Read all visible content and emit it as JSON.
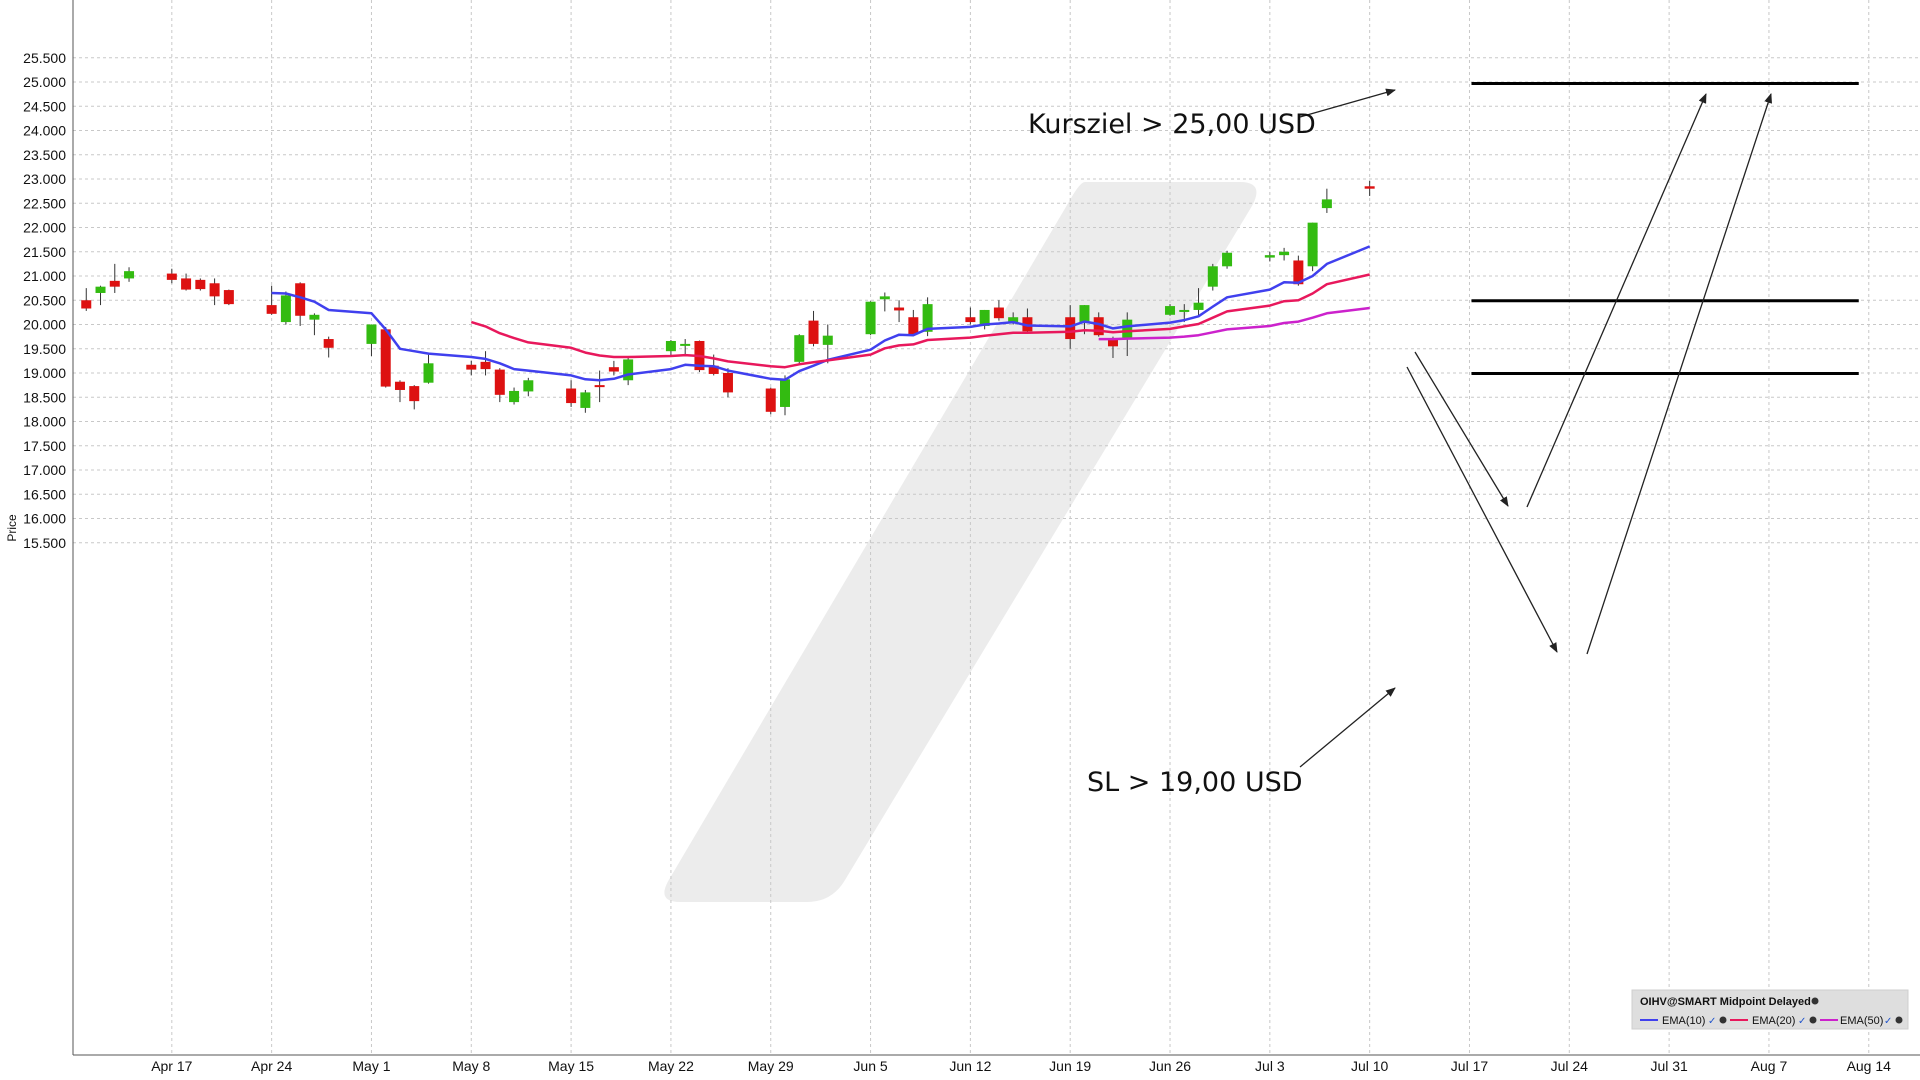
{
  "chart_data": {
    "type": "candlestick",
    "ylabel": "Price",
    "ylim": [
      15000,
      25800
    ],
    "yticks": [
      15500,
      16000,
      16500,
      17000,
      17500,
      18000,
      18500,
      19000,
      19500,
      20000,
      20500,
      21000,
      21500,
      22000,
      22500,
      23000,
      23500,
      24000,
      24500,
      25000,
      25500
    ],
    "ytick_labels": [
      "15.500",
      "16.000",
      "16.500",
      "17.000",
      "17.500",
      "18.000",
      "18.500",
      "19.000",
      "19.500",
      "20.000",
      "20.500",
      "21.000",
      "21.500",
      "22.000",
      "22.500",
      "23.000",
      "23.500",
      "24.000",
      "24.500",
      "25.000",
      "25.500"
    ],
    "xticks": [
      "Apr 17",
      "Apr 24",
      "May 1",
      "May 8",
      "May 15",
      "May 22",
      "May 29",
      "Jun 5",
      "Jun 12",
      "Jun 19",
      "Jun 26",
      "Jul 3",
      "Jul 10",
      "Jul 17",
      "Jul 24",
      "Jul 31",
      "Aug 7",
      "Aug 14"
    ],
    "x_start": "2017-04-10",
    "grid": true,
    "candles": [
      {
        "date": "2017-04-11",
        "open": 20500,
        "high": 20750,
        "low": 20280,
        "close": 20330
      },
      {
        "date": "2017-04-12",
        "open": 20650,
        "high": 20800,
        "low": 20400,
        "close": 20780
      },
      {
        "date": "2017-04-13",
        "open": 20900,
        "high": 21250,
        "low": 20650,
        "close": 20780
      },
      {
        "date": "2017-04-14",
        "open": 20950,
        "high": 21180,
        "low": 20880,
        "close": 21100
      },
      {
        "date": "2017-04-17",
        "open": 21050,
        "high": 21150,
        "low": 20850,
        "close": 20920
      },
      {
        "date": "2017-04-18",
        "open": 20950,
        "high": 21050,
        "low": 20700,
        "close": 20720
      },
      {
        "date": "2017-04-19",
        "open": 20920,
        "high": 20950,
        "low": 20700,
        "close": 20730
      },
      {
        "date": "2017-04-20",
        "open": 20850,
        "high": 20950,
        "low": 20400,
        "close": 20580
      },
      {
        "date": "2017-04-21",
        "open": 20710,
        "high": 20720,
        "low": 20400,
        "close": 20420
      },
      {
        "date": "2017-04-24",
        "open": 20400,
        "high": 20800,
        "low": 20200,
        "close": 20220
      },
      {
        "date": "2017-04-25",
        "open": 20050,
        "high": 20680,
        "low": 20000,
        "close": 20600
      },
      {
        "date": "2017-04-26",
        "open": 20850,
        "high": 20870,
        "low": 19970,
        "close": 20180
      },
      {
        "date": "2017-04-27",
        "open": 20100,
        "high": 20230,
        "low": 19780,
        "close": 20200
      },
      {
        "date": "2017-04-28",
        "open": 19700,
        "high": 19750,
        "low": 19320,
        "close": 19520
      },
      {
        "date": "2017-05-01",
        "open": 19600,
        "high": 20000,
        "low": 19350,
        "close": 20000
      },
      {
        "date": "2017-05-02",
        "open": 19900,
        "high": 19950,
        "low": 18700,
        "close": 18720
      },
      {
        "date": "2017-05-03",
        "open": 18820,
        "high": 18850,
        "low": 18400,
        "close": 18650
      },
      {
        "date": "2017-05-04",
        "open": 18730,
        "high": 18750,
        "low": 18250,
        "close": 18420
      },
      {
        "date": "2017-05-05",
        "open": 18800,
        "high": 19380,
        "low": 18780,
        "close": 19200
      },
      {
        "date": "2017-05-08",
        "open": 19170,
        "high": 19250,
        "low": 18950,
        "close": 19070
      },
      {
        "date": "2017-05-09",
        "open": 19230,
        "high": 19450,
        "low": 18950,
        "close": 19080
      },
      {
        "date": "2017-05-10",
        "open": 19070,
        "high": 19100,
        "low": 18400,
        "close": 18550
      },
      {
        "date": "2017-05-11",
        "open": 18400,
        "high": 18700,
        "low": 18350,
        "close": 18630
      },
      {
        "date": "2017-05-12",
        "open": 18620,
        "high": 18900,
        "low": 18520,
        "close": 18850
      },
      {
        "date": "2017-05-15",
        "open": 18680,
        "high": 18850,
        "low": 18300,
        "close": 18380
      },
      {
        "date": "2017-05-16",
        "open": 18280,
        "high": 18650,
        "low": 18180,
        "close": 18600
      },
      {
        "date": "2017-05-17",
        "open": 18750,
        "high": 19050,
        "low": 18400,
        "close": 18720
      },
      {
        "date": "2017-05-18",
        "open": 19120,
        "high": 19250,
        "low": 18950,
        "close": 19030
      },
      {
        "date": "2017-05-19",
        "open": 18850,
        "high": 19350,
        "low": 18750,
        "close": 19280
      },
      {
        "date": "2017-05-22",
        "open": 19450,
        "high": 19680,
        "low": 19350,
        "close": 19660
      },
      {
        "date": "2017-05-23",
        "open": 19580,
        "high": 19700,
        "low": 19380,
        "close": 19600
      },
      {
        "date": "2017-05-24",
        "open": 19660,
        "high": 19670,
        "low": 19020,
        "close": 19060
      },
      {
        "date": "2017-05-25",
        "open": 19150,
        "high": 19380,
        "low": 18950,
        "close": 18980
      },
      {
        "date": "2017-05-26",
        "open": 19000,
        "high": 19100,
        "low": 18500,
        "close": 18600
      },
      {
        "date": "2017-05-29",
        "open": 18680,
        "high": 18700,
        "low": 18150,
        "close": 18200
      },
      {
        "date": "2017-05-30",
        "open": 18300,
        "high": 18950,
        "low": 18130,
        "close": 18870
      },
      {
        "date": "2017-05-31",
        "open": 19230,
        "high": 19800,
        "low": 19180,
        "close": 19780
      },
      {
        "date": "2017-06-01",
        "open": 20080,
        "high": 20280,
        "low": 19550,
        "close": 19600
      },
      {
        "date": "2017-06-02",
        "open": 19580,
        "high": 20000,
        "low": 19200,
        "close": 19770
      },
      {
        "date": "2017-06-05",
        "open": 19800,
        "high": 20480,
        "low": 19780,
        "close": 20470
      },
      {
        "date": "2017-06-06",
        "open": 20520,
        "high": 20660,
        "low": 20270,
        "close": 20580
      },
      {
        "date": "2017-06-07",
        "open": 20350,
        "high": 20500,
        "low": 20050,
        "close": 20290
      },
      {
        "date": "2017-06-08",
        "open": 20150,
        "high": 20300,
        "low": 19780,
        "close": 19800
      },
      {
        "date": "2017-06-09",
        "open": 19850,
        "high": 20560,
        "low": 19760,
        "close": 20420
      },
      {
        "date": "2017-06-12",
        "open": 20150,
        "high": 20350,
        "low": 20000,
        "close": 20050
      },
      {
        "date": "2017-06-13",
        "open": 19970,
        "high": 20300,
        "low": 19900,
        "close": 20300
      },
      {
        "date": "2017-06-14",
        "open": 20350,
        "high": 20500,
        "low": 20080,
        "close": 20130
      },
      {
        "date": "2017-06-15",
        "open": 20050,
        "high": 20250,
        "low": 20000,
        "close": 20150
      },
      {
        "date": "2017-06-16",
        "open": 20150,
        "high": 20330,
        "low": 19850,
        "close": 19860
      },
      {
        "date": "2017-06-19",
        "open": 20150,
        "high": 20400,
        "low": 19500,
        "close": 19700
      },
      {
        "date": "2017-06-20",
        "open": 20030,
        "high": 20400,
        "low": 19800,
        "close": 20400
      },
      {
        "date": "2017-06-21",
        "open": 20150,
        "high": 20250,
        "low": 19750,
        "close": 19780
      },
      {
        "date": "2017-06-22",
        "open": 19720,
        "high": 19750,
        "low": 19310,
        "close": 19550
      },
      {
        "date": "2017-06-23",
        "open": 19720,
        "high": 20250,
        "low": 19350,
        "close": 20100
      },
      {
        "date": "2017-06-26",
        "open": 20200,
        "high": 20420,
        "low": 20180,
        "close": 20380
      },
      {
        "date": "2017-06-27",
        "open": 20300,
        "high": 20420,
        "low": 20050,
        "close": 20300
      },
      {
        "date": "2017-06-28",
        "open": 20300,
        "high": 20750,
        "low": 20150,
        "close": 20450
      },
      {
        "date": "2017-06-29",
        "open": 20780,
        "high": 21250,
        "low": 20700,
        "close": 21200
      },
      {
        "date": "2017-06-30",
        "open": 21200,
        "high": 21520,
        "low": 21150,
        "close": 21480
      },
      {
        "date": "2017-07-03",
        "open": 21380,
        "high": 21500,
        "low": 21300,
        "close": 21430
      },
      {
        "date": "2017-07-04",
        "open": 21430,
        "high": 21580,
        "low": 21320,
        "close": 21500
      },
      {
        "date": "2017-07-05",
        "open": 21320,
        "high": 21420,
        "low": 20800,
        "close": 20830
      },
      {
        "date": "2017-07-06",
        "open": 21200,
        "high": 22100,
        "low": 21100,
        "close": 22100
      },
      {
        "date": "2017-07-07",
        "open": 22400,
        "high": 22800,
        "low": 22300,
        "close": 22580
      },
      {
        "date": "2017-07-10",
        "open": 22850,
        "high": 22960,
        "low": 22650,
        "close": 22800
      }
    ],
    "series": [
      {
        "name": "EMA(10)",
        "color": "#4040ee",
        "points": [
          [
            "2017-04-24",
            20650
          ],
          [
            "2017-04-25",
            20640
          ],
          [
            "2017-04-26",
            20560
          ],
          [
            "2017-04-27",
            20470
          ],
          [
            "2017-04-28",
            20300
          ],
          [
            "2017-05-01",
            20230
          ],
          [
            "2017-05-02",
            19900
          ],
          [
            "2017-05-03",
            19500
          ],
          [
            "2017-05-04",
            19450
          ],
          [
            "2017-05-05",
            19400
          ],
          [
            "2017-05-08",
            19330
          ],
          [
            "2017-05-09",
            19290
          ],
          [
            "2017-05-10",
            19200
          ],
          [
            "2017-05-11",
            19080
          ],
          [
            "2017-05-12",
            19050
          ],
          [
            "2017-05-15",
            18950
          ],
          [
            "2017-05-16",
            18870
          ],
          [
            "2017-05-17",
            18850
          ],
          [
            "2017-05-18",
            18880
          ],
          [
            "2017-05-19",
            18970
          ],
          [
            "2017-05-22",
            19080
          ],
          [
            "2017-05-23",
            19170
          ],
          [
            "2017-05-24",
            19150
          ],
          [
            "2017-05-25",
            19140
          ],
          [
            "2017-05-26",
            19050
          ],
          [
            "2017-05-29",
            18880
          ],
          [
            "2017-05-30",
            18860
          ],
          [
            "2017-05-31",
            19040
          ],
          [
            "2017-06-01",
            19150
          ],
          [
            "2017-06-02",
            19270
          ],
          [
            "2017-06-05",
            19480
          ],
          [
            "2017-06-06",
            19670
          ],
          [
            "2017-06-07",
            19790
          ],
          [
            "2017-06-08",
            19780
          ],
          [
            "2017-06-09",
            19910
          ],
          [
            "2017-06-12",
            19950
          ],
          [
            "2017-06-13",
            20000
          ],
          [
            "2017-06-14",
            20020
          ],
          [
            "2017-06-15",
            20050
          ],
          [
            "2017-06-16",
            19980
          ],
          [
            "2017-06-19",
            19960
          ],
          [
            "2017-06-20",
            20060
          ],
          [
            "2017-06-21",
            20010
          ],
          [
            "2017-06-22",
            19920
          ],
          [
            "2017-06-23",
            19960
          ],
          [
            "2017-06-26",
            20040
          ],
          [
            "2017-06-27",
            20090
          ],
          [
            "2017-06-28",
            20170
          ],
          [
            "2017-06-29",
            20370
          ],
          [
            "2017-06-30",
            20560
          ],
          [
            "2017-07-03",
            20720
          ],
          [
            "2017-07-04",
            20870
          ],
          [
            "2017-07-05",
            20860
          ],
          [
            "2017-07-06",
            21000
          ],
          [
            "2017-07-07",
            21250
          ],
          [
            "2017-07-10",
            21610
          ]
        ]
      },
      {
        "name": "EMA(20)",
        "color": "#e8185c",
        "points": [
          [
            "2017-05-08",
            20050
          ],
          [
            "2017-05-09",
            19960
          ],
          [
            "2017-05-10",
            19820
          ],
          [
            "2017-05-11",
            19720
          ],
          [
            "2017-05-12",
            19630
          ],
          [
            "2017-05-15",
            19520
          ],
          [
            "2017-05-16",
            19420
          ],
          [
            "2017-05-17",
            19360
          ],
          [
            "2017-05-18",
            19330
          ],
          [
            "2017-05-19",
            19330
          ],
          [
            "2017-05-22",
            19350
          ],
          [
            "2017-05-23",
            19370
          ],
          [
            "2017-05-24",
            19350
          ],
          [
            "2017-05-25",
            19300
          ],
          [
            "2017-05-26",
            19240
          ],
          [
            "2017-05-29",
            19140
          ],
          [
            "2017-05-30",
            19120
          ],
          [
            "2017-05-31",
            19180
          ],
          [
            "2017-06-01",
            19220
          ],
          [
            "2017-06-02",
            19260
          ],
          [
            "2017-06-05",
            19380
          ],
          [
            "2017-06-06",
            19510
          ],
          [
            "2017-06-07",
            19570
          ],
          [
            "2017-06-08",
            19590
          ],
          [
            "2017-06-09",
            19680
          ],
          [
            "2017-06-12",
            19730
          ],
          [
            "2017-06-13",
            19770
          ],
          [
            "2017-06-14",
            19800
          ],
          [
            "2017-06-15",
            19830
          ],
          [
            "2017-06-16",
            19830
          ],
          [
            "2017-06-19",
            19850
          ],
          [
            "2017-06-20",
            19880
          ],
          [
            "2017-06-21",
            19870
          ],
          [
            "2017-06-22",
            19840
          ],
          [
            "2017-06-23",
            19860
          ],
          [
            "2017-06-26",
            19910
          ],
          [
            "2017-06-27",
            19960
          ],
          [
            "2017-06-28",
            20010
          ],
          [
            "2017-06-29",
            20140
          ],
          [
            "2017-06-30",
            20270
          ],
          [
            "2017-07-03",
            20390
          ],
          [
            "2017-07-04",
            20480
          ],
          [
            "2017-07-05",
            20500
          ],
          [
            "2017-07-06",
            20640
          ],
          [
            "2017-07-07",
            20830
          ],
          [
            "2017-07-10",
            21030
          ]
        ]
      },
      {
        "name": "EMA(50)",
        "color": "#cc22cc",
        "points": [
          [
            "2017-06-21",
            19700
          ],
          [
            "2017-06-22",
            19700
          ],
          [
            "2017-06-23",
            19710
          ],
          [
            "2017-06-26",
            19730
          ],
          [
            "2017-06-27",
            19750
          ],
          [
            "2017-06-28",
            19780
          ],
          [
            "2017-06-29",
            19840
          ],
          [
            "2017-06-30",
            19900
          ],
          [
            "2017-07-03",
            19970
          ],
          [
            "2017-07-04",
            20030
          ],
          [
            "2017-07-05",
            20060
          ],
          [
            "2017-07-06",
            20140
          ],
          [
            "2017-07-07",
            20230
          ],
          [
            "2017-07-10",
            20340
          ]
        ]
      }
    ],
    "levels": [
      {
        "name": "target",
        "value": 24970,
        "from": "2017-07-17",
        "to": "2017-08-14"
      },
      {
        "name": "entry",
        "value": 20490,
        "from": "2017-07-17",
        "to": "2017-08-14"
      },
      {
        "name": "stop",
        "value": 18990,
        "from": "2017-07-17",
        "to": "2017-08-14"
      }
    ],
    "annotations": [
      {
        "text": "Kursziel > 25,00 USD"
      },
      {
        "text": "SL > 19,00 USD"
      }
    ],
    "legend": {
      "title": "OIHV@SMART Midpoint Delayed",
      "position": "bottom-right",
      "items": [
        "EMA(10)",
        "EMA(20)",
        "EMA(50)"
      ]
    },
    "colors": {
      "up": "#33bb11",
      "down": "#dd1111",
      "grid": "#c8c8c8",
      "levels": "#000000",
      "watermark": "#ececec"
    }
  }
}
